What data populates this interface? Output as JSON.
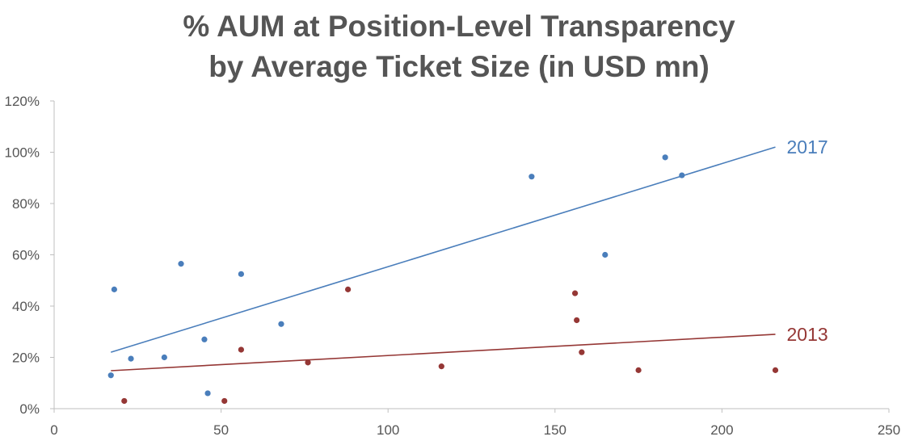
{
  "chart_data": {
    "type": "scatter",
    "title_lines": [
      "% AUM at Position-Level Transparency",
      "by Average Ticket Size (in USD mn)"
    ],
    "xlabel": "",
    "ylabel": "",
    "xlim": [
      0,
      250
    ],
    "ylim": [
      0,
      1.2
    ],
    "x_ticks": [
      0,
      50,
      100,
      150,
      200,
      250
    ],
    "x_tick_labels": [
      "0",
      "50",
      "100",
      "150",
      "200",
      "250"
    ],
    "y_ticks": [
      0,
      0.2,
      0.4,
      0.6,
      0.8,
      1.0,
      1.2
    ],
    "y_tick_labels": [
      "0%",
      "20%",
      "40%",
      "60%",
      "80%",
      "100%",
      "120%"
    ],
    "grid": false,
    "series": [
      {
        "name": "2017",
        "color": "#4a7ebb",
        "points": [
          [
            17,
            0.13
          ],
          [
            18,
            0.465
          ],
          [
            23,
            0.195
          ],
          [
            33,
            0.2
          ],
          [
            38,
            0.565
          ],
          [
            45,
            0.27
          ],
          [
            46,
            0.06
          ],
          [
            56,
            0.525
          ],
          [
            68,
            0.33
          ],
          [
            143,
            0.905
          ],
          [
            165,
            0.6
          ],
          [
            183,
            0.98
          ],
          [
            188,
            0.91
          ]
        ],
        "trendline": [
          [
            17,
            0.22
          ],
          [
            216,
            1.02
          ]
        ]
      },
      {
        "name": "2013",
        "color": "#953735",
        "points": [
          [
            21,
            0.03
          ],
          [
            51,
            0.03
          ],
          [
            56,
            0.23
          ],
          [
            76,
            0.18
          ],
          [
            88,
            0.465
          ],
          [
            116,
            0.165
          ],
          [
            156,
            0.45
          ],
          [
            156.5,
            0.345
          ],
          [
            158,
            0.22
          ],
          [
            175,
            0.15
          ],
          [
            216,
            0.15
          ]
        ],
        "trendline": [
          [
            17,
            0.148
          ],
          [
            216,
            0.29
          ]
        ]
      }
    ]
  }
}
